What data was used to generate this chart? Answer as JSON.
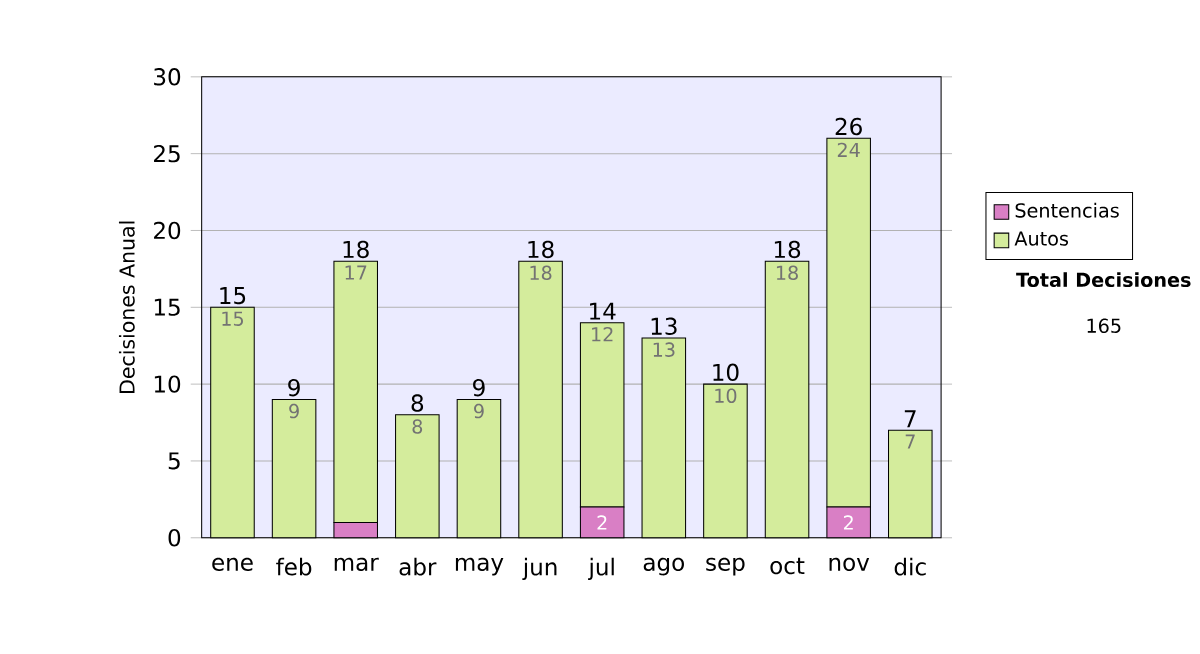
{
  "chart_data": {
    "type": "bar",
    "stacked": true,
    "ylabel": "Decisiones Anual",
    "categories": [
      "ene",
      "feb",
      "mar",
      "abr",
      "may",
      "jun",
      "jul",
      "ago",
      "sep",
      "oct",
      "nov",
      "dic"
    ],
    "series": [
      {
        "name": "Sentencias",
        "color": "#d97fc5",
        "values": [
          0,
          0,
          1,
          0,
          0,
          0,
          2,
          0,
          0,
          0,
          2,
          0
        ],
        "value_labels": [
          null,
          null,
          null,
          null,
          null,
          null,
          "2",
          null,
          null,
          null,
          "2",
          null
        ]
      },
      {
        "name": "Autos",
        "color": "#d4ec9c",
        "values": [
          15,
          9,
          17,
          8,
          9,
          18,
          12,
          13,
          10,
          18,
          24,
          7
        ],
        "value_labels": [
          "15",
          "9",
          "17",
          "8",
          "9",
          "18",
          "12",
          "13",
          "10",
          "18",
          "24",
          "7"
        ]
      }
    ],
    "totals": [
      "15",
      "9",
      "18",
      "8",
      "9",
      "18",
      "14",
      "13",
      "10",
      "18",
      "26",
      "7"
    ],
    "ylim": [
      0,
      30
    ],
    "yticks": [
      0,
      5,
      10,
      15,
      20,
      25,
      30
    ],
    "grid": "y",
    "legend": "right",
    "annotations": [
      "Total Decisiones",
      "165"
    ]
  }
}
